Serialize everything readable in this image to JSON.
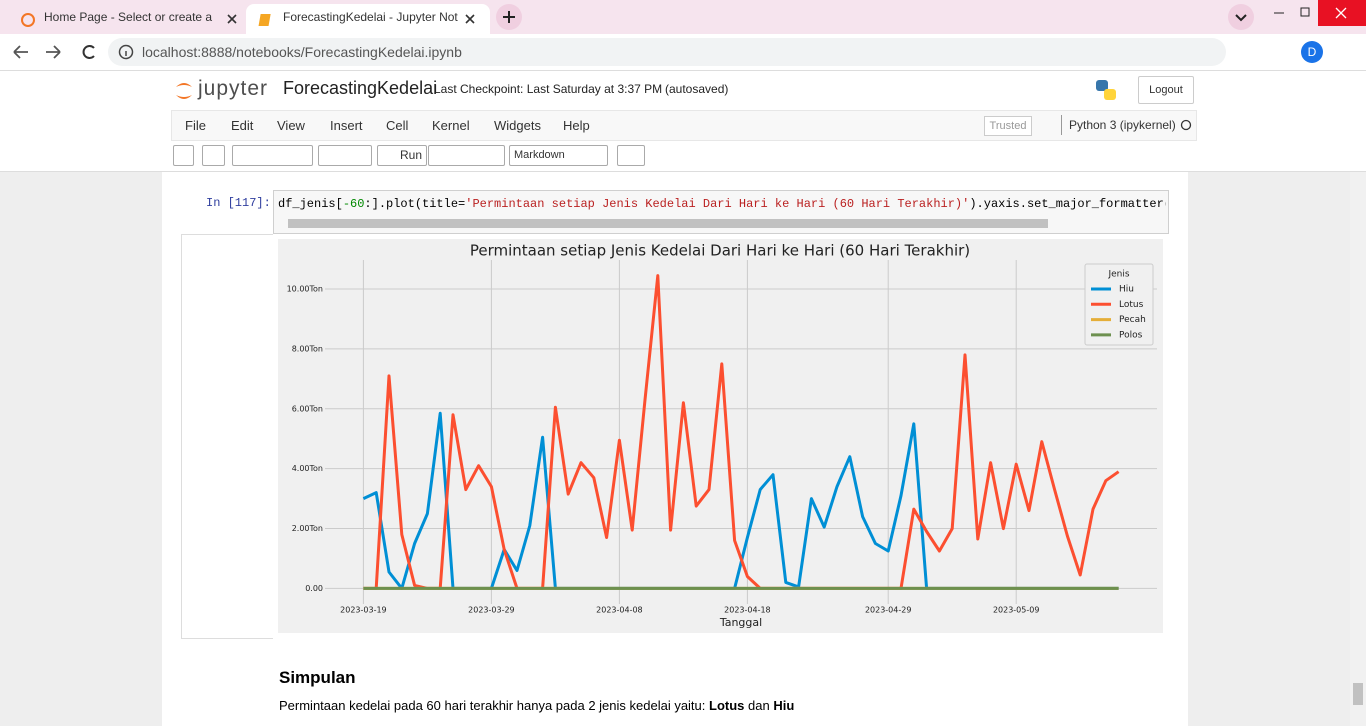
{
  "browser": {
    "tabs": [
      "Home Page - Select or create a n",
      "ForecastingKedelai - Jupyter Not"
    ],
    "url": "localhost:8888/notebooks/ForecastingKedelai.ipynb",
    "profile": "D"
  },
  "notebook": {
    "logo": "jupyter",
    "name": "ForecastingKedelai",
    "checkpoint": "Last Checkpoint: Last Saturday at 3:37 PM",
    "autosaved": "(autosaved)",
    "logout": "Logout",
    "menu": [
      "File",
      "Edit",
      "View",
      "Insert",
      "Cell",
      "Kernel",
      "Widgets",
      "Help"
    ],
    "trusted": "Trusted",
    "kernel": "Python 3 (ipykernel)",
    "run": "Run",
    "cell_type": "Markdown"
  },
  "cell": {
    "prompt": "In [117]:",
    "code": [
      "df_jenis[",
      "-60",
      ":].plot(title=",
      "'Permintaan setiap Jenis Kedelai Dari Hari ke Hari (60 Hari Terakhir)'",
      ").yaxis.set_major_formatter(FuncF"
    ]
  },
  "chart_data": {
    "type": "line",
    "title": "Permintaan setiap Jenis Kedelai Dari Hari ke Hari (60 Hari Terakhir)",
    "x_label": "Tanggal",
    "legend_title": "Jenis",
    "legend": "upper right",
    "grid": true,
    "x": [
      "2023-03-19",
      "2023-03-20",
      "2023-03-21",
      "2023-03-22",
      "2023-03-23",
      "2023-03-24",
      "2023-03-25",
      "2023-03-26",
      "2023-03-27",
      "2023-03-28",
      "2023-03-29",
      "2023-03-30",
      "2023-03-31",
      "2023-04-01",
      "2023-04-02",
      "2023-04-03",
      "2023-04-04",
      "2023-04-05",
      "2023-04-06",
      "2023-04-07",
      "2023-04-08",
      "2023-04-09",
      "2023-04-10",
      "2023-04-11",
      "2023-04-12",
      "2023-04-13",
      "2023-04-14",
      "2023-04-15",
      "2023-04-16",
      "2023-04-17",
      "2023-04-18",
      "2023-04-19",
      "2023-04-20",
      "2023-04-21",
      "2023-04-22",
      "2023-04-23",
      "2023-04-24",
      "2023-04-25",
      "2023-04-26",
      "2023-04-27",
      "2023-04-28",
      "2023-04-29",
      "2023-04-30",
      "2023-05-01",
      "2023-05-02",
      "2023-05-03",
      "2023-05-04",
      "2023-05-05",
      "2023-05-06",
      "2023-05-07",
      "2023-05-08",
      "2023-05-09",
      "2023-05-10",
      "2023-05-11",
      "2023-05-12",
      "2023-05-13",
      "2023-05-14",
      "2023-05-15",
      "2023-05-16",
      "2023-05-17"
    ],
    "xlim": [
      "2023-03-16",
      "2023-05-20"
    ],
    "xticks": [
      "2023-03-19",
      "2023-03-29",
      "2023-04-08",
      "2023-04-18",
      "2023-04-29",
      "2023-05-09"
    ],
    "ylim": [
      -0.52,
      10.97
    ],
    "yticks": [
      {
        "value": 0,
        "label": "0.00"
      },
      {
        "value": 2,
        "label": "2.00Ton"
      },
      {
        "value": 4,
        "label": "4.00Ton"
      },
      {
        "value": 6,
        "label": "6.00Ton"
      },
      {
        "value": 8,
        "label": "8.00Ton"
      },
      {
        "value": 10,
        "label": "10.00Ton"
      }
    ],
    "series": [
      {
        "name": "Hiu",
        "color": "#008fd5",
        "values": [
          3.0,
          3.2,
          0.55,
          0,
          1.5,
          2.5,
          5.85,
          0,
          0,
          0,
          0,
          1.3,
          0.6,
          2.1,
          5.05,
          0,
          0,
          0,
          0,
          0,
          0,
          0,
          0,
          0,
          0,
          0,
          0,
          0,
          0,
          0,
          1.7,
          3.3,
          3.8,
          0.2,
          0.05,
          3.0,
          2.05,
          3.4,
          4.4,
          2.4,
          1.5,
          1.25,
          3.1,
          5.5,
          0,
          0,
          0,
          0,
          0,
          0,
          0,
          0,
          0,
          0,
          0,
          0,
          0,
          0,
          0,
          0
        ]
      },
      {
        "name": "Lotus",
        "color": "#fc4f30",
        "values": [
          0,
          0,
          7.1,
          1.8,
          0.1,
          0,
          0,
          5.8,
          3.3,
          4.1,
          3.4,
          1.3,
          0,
          0,
          0,
          6.05,
          3.15,
          4.2,
          3.7,
          1.7,
          4.95,
          1.95,
          6.3,
          10.45,
          1.95,
          6.2,
          2.75,
          3.3,
          7.5,
          1.6,
          0.4,
          0,
          0,
          0,
          0,
          0,
          0,
          0,
          0,
          0,
          0,
          0,
          0,
          2.65,
          1.9,
          1.25,
          2.0,
          7.8,
          1.65,
          4.2,
          2.0,
          4.15,
          2.6,
          4.9,
          3.3,
          1.75,
          0.45,
          2.65,
          3.6,
          3.9
        ]
      },
      {
        "name": "Pecah",
        "color": "#e5ae38",
        "values": [
          0,
          0,
          0,
          0,
          0,
          0,
          0,
          0,
          0,
          0,
          0,
          0,
          0,
          0,
          0,
          0,
          0,
          0,
          0,
          0,
          0,
          0,
          0,
          0,
          0,
          0,
          0,
          0,
          0,
          0,
          0,
          0,
          0,
          0,
          0,
          0,
          0,
          0,
          0,
          0,
          0,
          0,
          0,
          0,
          0,
          0,
          0,
          0,
          0,
          0,
          0,
          0,
          0,
          0,
          0,
          0,
          0,
          0,
          0,
          0
        ]
      },
      {
        "name": "Polos",
        "color": "#6d904f",
        "values": [
          0,
          0,
          0,
          0,
          0,
          0,
          0,
          0,
          0,
          0,
          0,
          0,
          0,
          0,
          0,
          0,
          0,
          0,
          0,
          0,
          0,
          0,
          0,
          0,
          0,
          0,
          0,
          0,
          0,
          0,
          0,
          0,
          0,
          0,
          0,
          0,
          0,
          0,
          0,
          0,
          0,
          0,
          0,
          0,
          0,
          0,
          0,
          0,
          0,
          0,
          0,
          0,
          0,
          0,
          0,
          0,
          0,
          0,
          0,
          0
        ]
      }
    ]
  },
  "markdown": {
    "heading": "Simpulan",
    "text": "Permintaan kedelai pada 60 hari terakhir hanya pada 2 jenis kedelai yaitu: ",
    "bold1": "Lotus",
    "joiner": " dan ",
    "bold2": "Hiu"
  }
}
